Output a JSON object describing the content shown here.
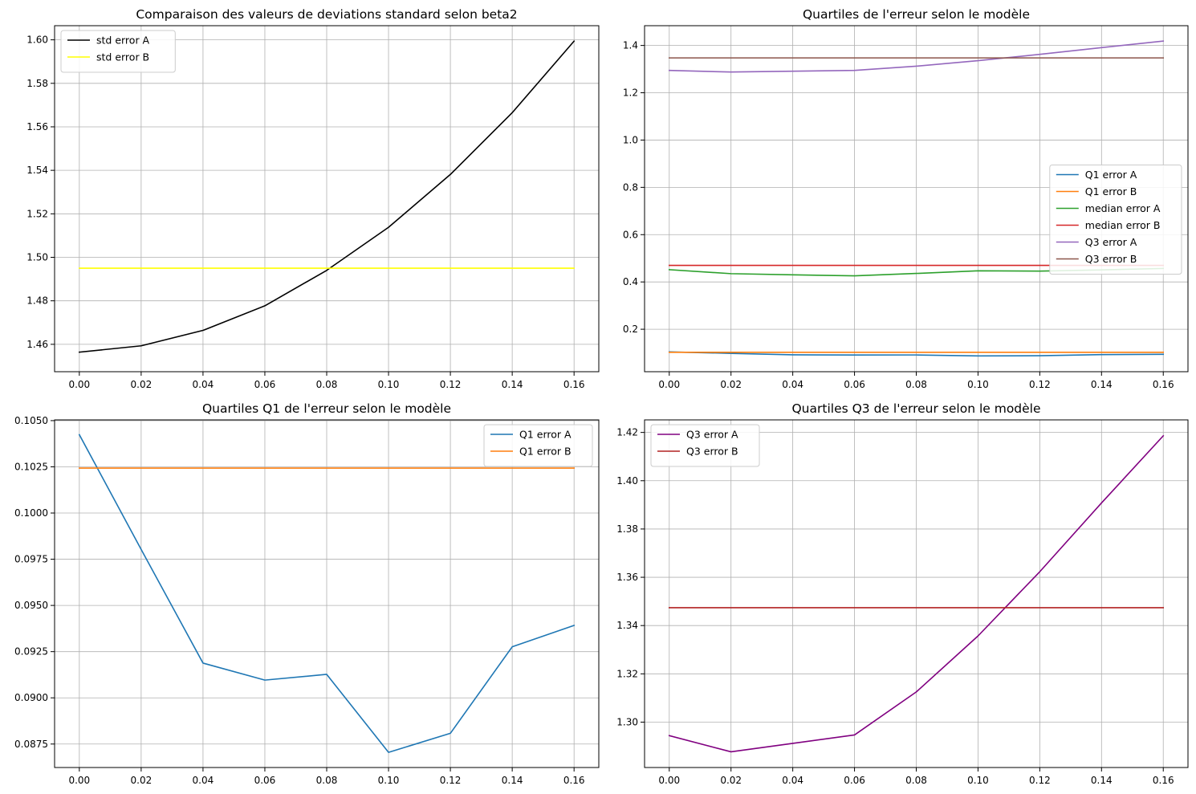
{
  "chart_data": [
    {
      "type": "line",
      "title": "Comparaison des valeurs de deviations standard selon beta2",
      "x": [
        0.0,
        0.02,
        0.04,
        0.06,
        0.08,
        0.1,
        0.12,
        0.14,
        0.16
      ],
      "xticks": [
        "0.00",
        "0.02",
        "0.04",
        "0.06",
        "0.08",
        "0.10",
        "0.12",
        "0.14",
        "0.16"
      ],
      "xlim": [
        -0.008,
        0.168
      ],
      "ylim": [
        1.4474,
        1.6065
      ],
      "yticks": [
        "1.46",
        "1.48",
        "1.50",
        "1.52",
        "1.54",
        "1.56",
        "1.58",
        "1.60"
      ],
      "ytick_values": [
        1.46,
        1.48,
        1.5,
        1.52,
        1.54,
        1.56,
        1.58,
        1.6
      ],
      "grid": true,
      "legend": "upper-left",
      "series": [
        {
          "name": "std error A",
          "color": "#000000",
          "values": [
            1.4564,
            1.4593,
            1.4664,
            1.4777,
            1.494,
            1.5138,
            1.5381,
            1.5665,
            1.5994
          ]
        },
        {
          "name": "std error B",
          "color": "#ffff00",
          "values": [
            1.495,
            1.495,
            1.495,
            1.495,
            1.495,
            1.495,
            1.495,
            1.495,
            1.495
          ]
        }
      ]
    },
    {
      "type": "line",
      "title": "Quartiles de l'erreur selon le modèle",
      "x": [
        0.0,
        0.02,
        0.04,
        0.06,
        0.08,
        0.1,
        0.12,
        0.14,
        0.16
      ],
      "xticks": [
        "0.00",
        "0.02",
        "0.04",
        "0.06",
        "0.08",
        "0.10",
        "0.12",
        "0.14",
        "0.16"
      ],
      "xlim": [
        -0.008,
        0.168
      ],
      "ylim": [
        0.0204,
        1.4836
      ],
      "yticks": [
        "0.2",
        "0.4",
        "0.6",
        "0.8",
        "1.0",
        "1.2",
        "1.4"
      ],
      "ytick_values": [
        0.2,
        0.4,
        0.6,
        0.8,
        1.0,
        1.2,
        1.4
      ],
      "grid": true,
      "legend": "center-right",
      "series": [
        {
          "name": "Q1 error A",
          "color": "#1f77b4",
          "values": [
            0.1042,
            0.098,
            0.0919,
            0.091,
            0.0913,
            0.0871,
            0.0881,
            0.0928,
            0.0939
          ]
        },
        {
          "name": "Q1 error B",
          "color": "#ff7f0e",
          "values": [
            0.1024,
            0.1024,
            0.1024,
            0.1024,
            0.1024,
            0.1024,
            0.1024,
            0.1024,
            0.1024
          ]
        },
        {
          "name": "median error A",
          "color": "#2ca02c",
          "values": [
            0.452,
            0.435,
            0.43,
            0.426,
            0.436,
            0.447,
            0.446,
            0.451,
            0.457
          ]
        },
        {
          "name": "median error B",
          "color": "#d62728",
          "values": [
            0.47,
            0.47,
            0.47,
            0.47,
            0.47,
            0.47,
            0.47,
            0.47,
            0.47
          ]
        },
        {
          "name": "Q3 error A",
          "color": "#9467bd",
          "values": [
            1.2944,
            1.2877,
            1.2912,
            1.2947,
            1.3125,
            1.3357,
            1.3623,
            1.3908,
            1.4186
          ]
        },
        {
          "name": "Q3 error B",
          "color": "#8c564b",
          "values": [
            1.3474,
            1.3474,
            1.3474,
            1.3474,
            1.3474,
            1.3474,
            1.3474,
            1.3474,
            1.3474
          ]
        }
      ]
    },
    {
      "type": "line",
      "title": "Quartiles Q1 de l'erreur selon le modèle",
      "x": [
        0.0,
        0.02,
        0.04,
        0.06,
        0.08,
        0.1,
        0.12,
        0.14,
        0.16
      ],
      "xticks": [
        "0.00",
        "0.02",
        "0.04",
        "0.06",
        "0.08",
        "0.10",
        "0.12",
        "0.14",
        "0.16"
      ],
      "xlim": [
        -0.008,
        0.168
      ],
      "ylim": [
        0.08623,
        0.10504
      ],
      "yticks": [
        "0.0875",
        "0.0900",
        "0.0925",
        "0.0950",
        "0.0975",
        "0.1000",
        "0.1025",
        "0.1050"
      ],
      "ytick_values": [
        0.0875,
        0.09,
        0.0925,
        0.095,
        0.0975,
        0.1,
        0.1025,
        0.105
      ],
      "grid": true,
      "legend": "upper-right",
      "series": [
        {
          "name": "Q1 error A",
          "color": "#1f77b4",
          "values": [
            0.10424,
            0.09803,
            0.09188,
            0.09096,
            0.09127,
            0.08705,
            0.08808,
            0.09276,
            0.09392
          ]
        },
        {
          "name": "Q1 error B",
          "color": "#ff7f0e",
          "values": [
            0.10243,
            0.10243,
            0.10243,
            0.10243,
            0.10243,
            0.10243,
            0.10243,
            0.10243,
            0.10243
          ]
        }
      ]
    },
    {
      "type": "line",
      "title": "Quartiles Q3 de l'erreur selon le modèle",
      "x": [
        0.0,
        0.02,
        0.04,
        0.06,
        0.08,
        0.1,
        0.12,
        0.14,
        0.16
      ],
      "xticks": [
        "0.00",
        "0.02",
        "0.04",
        "0.06",
        "0.08",
        "0.10",
        "0.12",
        "0.14",
        "0.16"
      ],
      "xlim": [
        -0.008,
        0.168
      ],
      "ylim": [
        1.2812,
        1.4252
      ],
      "yticks": [
        "1.30",
        "1.32",
        "1.34",
        "1.36",
        "1.38",
        "1.40",
        "1.42"
      ],
      "ytick_values": [
        1.3,
        1.32,
        1.34,
        1.36,
        1.38,
        1.4,
        1.42
      ],
      "grid": true,
      "legend": "upper-left",
      "series": [
        {
          "name": "Q3 error A",
          "color": "#800080",
          "values": [
            1.2944,
            1.2877,
            1.2912,
            1.2947,
            1.3125,
            1.3357,
            1.3623,
            1.3908,
            1.4186
          ]
        },
        {
          "name": "Q3 error B",
          "color": "#b22222",
          "values": [
            1.3474,
            1.3474,
            1.3474,
            1.3474,
            1.3474,
            1.3474,
            1.3474,
            1.3474,
            1.3474
          ]
        }
      ]
    }
  ]
}
